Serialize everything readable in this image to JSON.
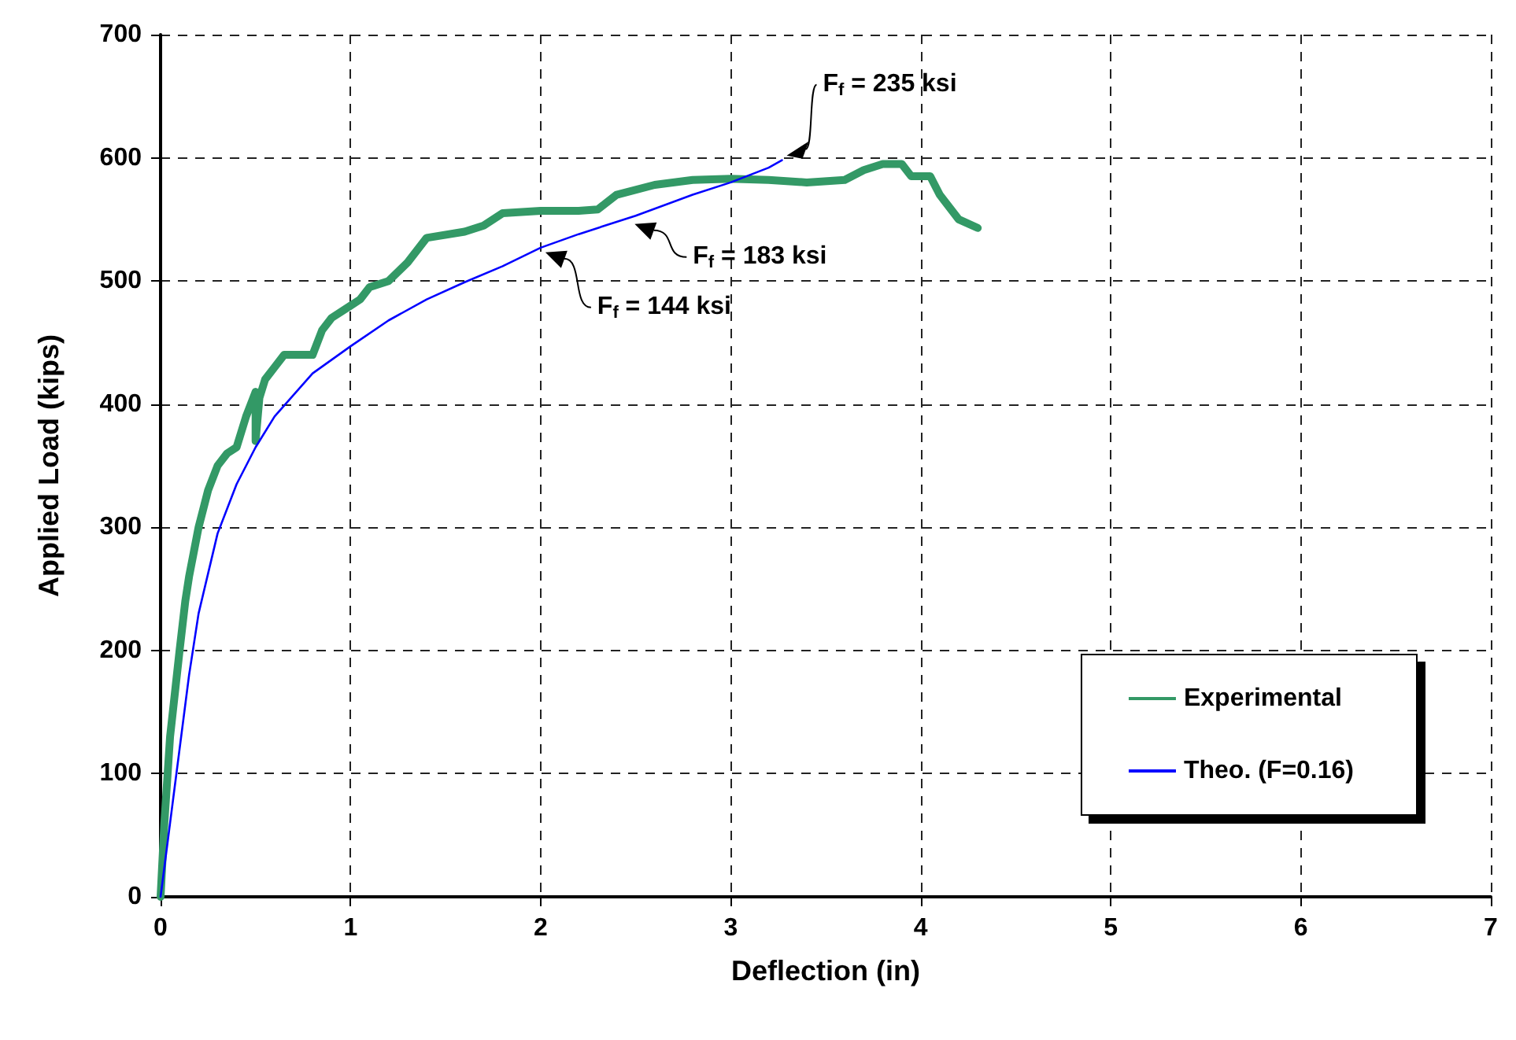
{
  "chart_data": {
    "type": "line",
    "xlabel": "Deflection (in)",
    "ylabel": "Applied Load (kips)",
    "xlim": [
      0,
      7
    ],
    "xticks": [
      0,
      1,
      2,
      3,
      4,
      5,
      6,
      7
    ],
    "ylim": [
      0,
      700
    ],
    "yticks": [
      0,
      100,
      200,
      300,
      400,
      500,
      600,
      700
    ],
    "grid": true,
    "legend": "bottom right",
    "marker": "none",
    "series": [
      {
        "name": "Experimental",
        "color": "#339966",
        "x": [
          0,
          0.02,
          0.05,
          0.1,
          0.13,
          0.15,
          0.2,
          0.25,
          0.3,
          0.35,
          0.4,
          0.45,
          0.5,
          0.5,
          0.52,
          0.55,
          0.6,
          0.65,
          0.8,
          0.85,
          0.9,
          1.0,
          1.05,
          1.1,
          1.2,
          1.3,
          1.4,
          1.6,
          1.7,
          1.8,
          2.0,
          2.2,
          2.3,
          2.4,
          2.6,
          2.8,
          3.0,
          3.2,
          3.4,
          3.6,
          3.7,
          3.8,
          3.9,
          3.95,
          4.05,
          4.1,
          4.2,
          4.3
        ],
        "values": [
          0,
          60,
          130,
          200,
          240,
          260,
          300,
          330,
          350,
          360,
          365,
          390,
          410,
          370,
          405,
          420,
          430,
          440,
          440,
          460,
          470,
          480,
          485,
          495,
          500,
          515,
          535,
          540,
          545,
          555,
          557,
          557,
          558,
          570,
          578,
          582,
          583,
          582,
          580,
          582,
          590,
          595,
          595,
          585,
          585,
          570,
          550,
          543
        ]
      },
      {
        "name": "Theo. (F=0.16)",
        "color": "#0000ff",
        "x": [
          0,
          0.05,
          0.1,
          0.15,
          0.2,
          0.3,
          0.4,
          0.5,
          0.6,
          0.8,
          1.0,
          1.2,
          1.4,
          1.6,
          1.8,
          2.0,
          2.2,
          2.5,
          2.8,
          3.0,
          3.2,
          3.27
        ],
        "values": [
          0,
          60,
          120,
          180,
          230,
          295,
          335,
          365,
          390,
          425,
          447,
          468,
          485,
          499,
          512,
          527,
          538,
          553,
          570,
          580,
          592,
          598
        ]
      }
    ],
    "annotations": [
      {
        "text": "F$_{f}$ = 235 ksi",
        "x": 3.27,
        "y": 598
      },
      {
        "text": "F$_{f}$ = 183 ksi",
        "x": 2.47,
        "y": 550
      },
      {
        "text": "F$_{f}$ = 144 ksi",
        "x": 2.0,
        "y": 527
      }
    ]
  }
}
